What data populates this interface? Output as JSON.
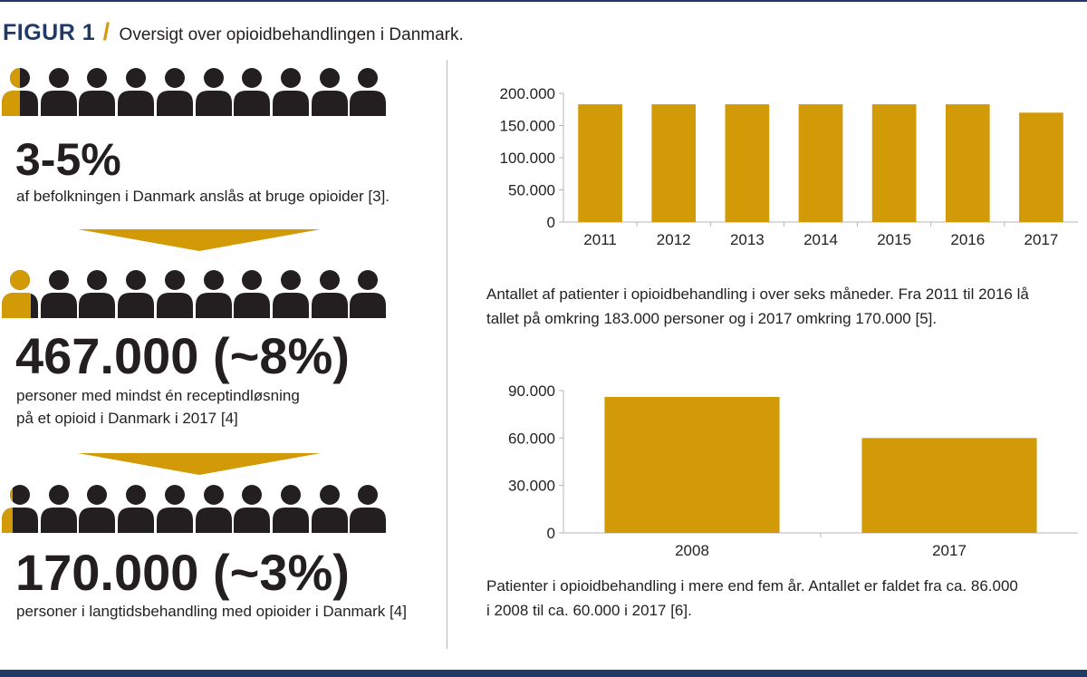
{
  "header": {
    "label": "FIGUR 1",
    "slash": "/",
    "subtitle": "Oversigt over opioidbehandlingen i Danmark."
  },
  "colors": {
    "accent": "#d39a07",
    "dark": "#231f20",
    "navy": "#1f3a66"
  },
  "left": {
    "stats": [
      {
        "value": "3-5%",
        "lines": [
          "af befolkningen i Danmark anslås at bruge opioider [3]."
        ],
        "icons_total": 10,
        "highlight_fraction_of_first": 0.5
      },
      {
        "value": "467.000 (~8%)",
        "lines": [
          "personer med mindst én receptindløsning",
          "på et opioid i Danmark i 2017 [4]"
        ],
        "icons_total": 10,
        "highlight_fraction_of_first": 0.8
      },
      {
        "value": "170.000 (~3%)",
        "lines": [
          "personer i langtidsbehandling med opioider i Danmark [4]"
        ],
        "icons_total": 10,
        "highlight_fraction_of_first": 0.3
      }
    ]
  },
  "chart_data": [
    {
      "type": "bar",
      "categories": [
        "2011",
        "2012",
        "2013",
        "2014",
        "2015",
        "2016",
        "2017"
      ],
      "values": [
        183000,
        183000,
        183000,
        183000,
        183000,
        183000,
        170000
      ],
      "ylim": [
        0,
        200000
      ],
      "yticks": [
        "0",
        "50.000",
        "100.000",
        "150.000",
        "200.000"
      ],
      "ytick_values": [
        0,
        50000,
        100000,
        150000,
        200000
      ],
      "grid": false,
      "caption": [
        "Antallet af patienter i opioidbehandling i over seks måneder. Fra 2011 til 2016 lå",
        "tallet på omkring 183.000 personer og i 2017 omkring 170.000 [5]."
      ]
    },
    {
      "type": "bar",
      "categories": [
        "2008",
        "2017"
      ],
      "values": [
        86000,
        60000
      ],
      "ylim": [
        0,
        90000
      ],
      "yticks": [
        "0",
        "30.000",
        "60.000",
        "90.000"
      ],
      "ytick_values": [
        0,
        30000,
        60000,
        90000
      ],
      "grid": false,
      "caption": [
        "Patienter i opioidbehandling i mere end fem år. Antallet er faldet fra ca. 86.000",
        "i 2008 til ca. 60.000 i 2017 [6]."
      ]
    }
  ]
}
